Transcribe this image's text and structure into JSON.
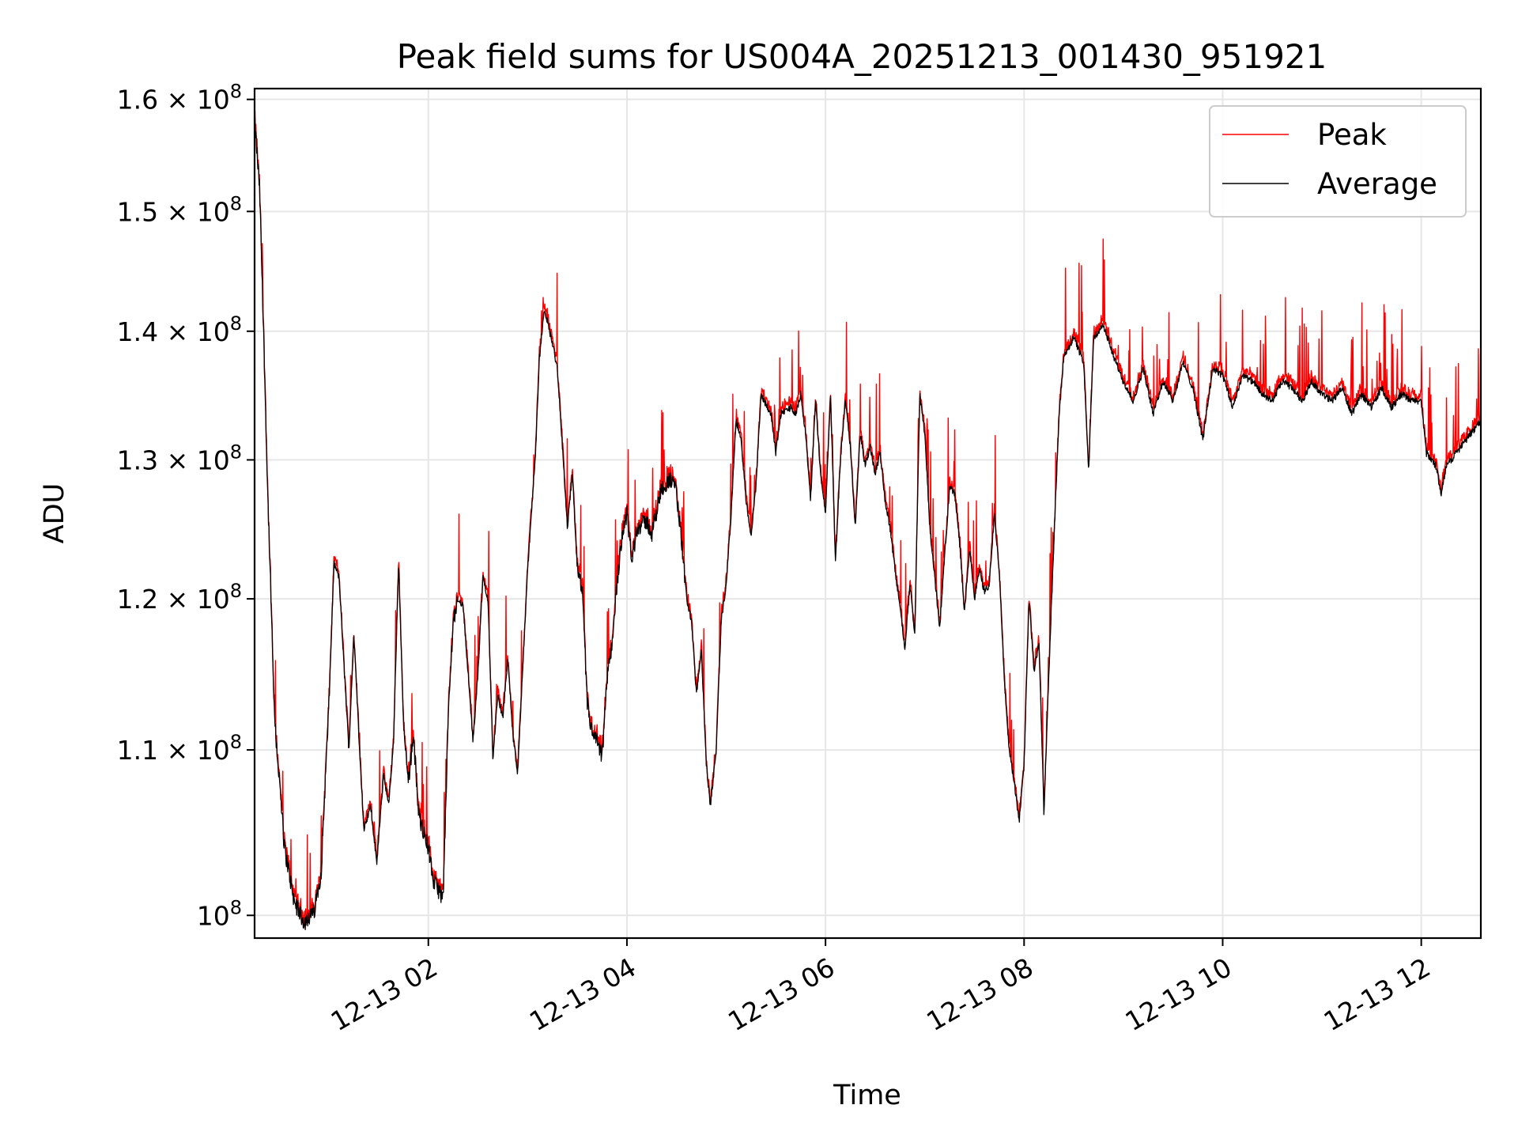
{
  "chart_data": {
    "type": "line",
    "title": "Peak field sums for US004A_20251213_001430_951921",
    "xlabel": "Time",
    "ylabel": "ADU",
    "yscale": "log",
    "grid": true,
    "legend_position": "top-right",
    "colors": {
      "peak": "#ff0000",
      "average": "#000000",
      "grid": "#e6e6e6"
    },
    "xlim_hours": [
      0.25,
      12.6
    ],
    "ylim": [
      98700000,
      161000000
    ],
    "x_ticks": [
      {
        "label": "12-13 02",
        "hour": 2
      },
      {
        "label": "12-13 04",
        "hour": 4
      },
      {
        "label": "12-13 06",
        "hour": 6
      },
      {
        "label": "12-13 08",
        "hour": 8
      },
      {
        "label": "12-13 10",
        "hour": 10
      },
      {
        "label": "12-13 12",
        "hour": 12
      }
    ],
    "y_ticks": [
      {
        "mant": "10",
        "exp": "8",
        "value": 100000000
      },
      {
        "mant": "1.1 × 10",
        "exp": "8",
        "value": 110000000
      },
      {
        "mant": "1.2 × 10",
        "exp": "8",
        "value": 120000000
      },
      {
        "mant": "1.3 × 10",
        "exp": "8",
        "value": 130000000
      },
      {
        "mant": "1.4 × 10",
        "exp": "8",
        "value": 140000000
      },
      {
        "mant": "1.5 × 10",
        "exp": "8",
        "value": 150000000
      },
      {
        "mant": "1.6 × 10",
        "exp": "8",
        "value": 160000000
      }
    ],
    "series": [
      {
        "name": "Peak",
        "color": "#ff0000"
      },
      {
        "name": "Average",
        "color": "#000000"
      }
    ],
    "average_keypoints_hours_adu": [
      [
        0.25,
        158.0
      ],
      [
        0.3,
        152.0
      ],
      [
        0.38,
        128.0
      ],
      [
        0.45,
        112.0
      ],
      [
        0.55,
        104.0
      ],
      [
        0.65,
        100.8
      ],
      [
        0.75,
        99.6
      ],
      [
        0.85,
        100.2
      ],
      [
        0.92,
        102.5
      ],
      [
        1.0,
        113.0
      ],
      [
        1.05,
        122.5
      ],
      [
        1.1,
        121.5
      ],
      [
        1.15,
        115.5
      ],
      [
        1.2,
        110.0
      ],
      [
        1.25,
        117.5
      ],
      [
        1.3,
        111.0
      ],
      [
        1.35,
        105.0
      ],
      [
        1.42,
        106.5
      ],
      [
        1.48,
        103.0
      ],
      [
        1.55,
        108.5
      ],
      [
        1.6,
        106.5
      ],
      [
        1.65,
        110.5
      ],
      [
        1.7,
        122.5
      ],
      [
        1.75,
        111.5
      ],
      [
        1.8,
        108.0
      ],
      [
        1.85,
        111.0
      ],
      [
        1.9,
        106.0
      ],
      [
        1.95,
        105.0
      ],
      [
        2.0,
        104.0
      ],
      [
        2.05,
        102.0
      ],
      [
        2.15,
        101.0
      ],
      [
        2.2,
        112.0
      ],
      [
        2.25,
        118.5
      ],
      [
        2.3,
        120.0
      ],
      [
        2.35,
        119.5
      ],
      [
        2.4,
        115.0
      ],
      [
        2.45,
        110.5
      ],
      [
        2.5,
        115.0
      ],
      [
        2.55,
        121.5
      ],
      [
        2.6,
        120.0
      ],
      [
        2.65,
        109.5
      ],
      [
        2.7,
        113.5
      ],
      [
        2.75,
        112.0
      ],
      [
        2.8,
        116.0
      ],
      [
        2.85,
        111.0
      ],
      [
        2.9,
        108.5
      ],
      [
        3.0,
        122.0
      ],
      [
        3.08,
        130.5
      ],
      [
        3.12,
        138.0
      ],
      [
        3.17,
        141.8
      ],
      [
        3.25,
        139.0
      ],
      [
        3.3,
        137.0
      ],
      [
        3.35,
        131.0
      ],
      [
        3.4,
        125.0
      ],
      [
        3.45,
        129.0
      ],
      [
        3.5,
        122.0
      ],
      [
        3.55,
        120.5
      ],
      [
        3.6,
        113.0
      ],
      [
        3.65,
        111.0
      ],
      [
        3.7,
        110.5
      ],
      [
        3.75,
        109.5
      ],
      [
        3.8,
        114.5
      ],
      [
        3.85,
        117.0
      ],
      [
        3.9,
        121.0
      ],
      [
        3.95,
        124.5
      ],
      [
        4.0,
        126.0
      ],
      [
        4.05,
        122.5
      ],
      [
        4.1,
        125.0
      ],
      [
        4.2,
        125.5
      ],
      [
        4.25,
        124.5
      ],
      [
        4.35,
        128.0
      ],
      [
        4.45,
        128.5
      ],
      [
        4.5,
        127.5
      ],
      [
        4.55,
        124.0
      ],
      [
        4.6,
        120.0
      ],
      [
        4.65,
        118.5
      ],
      [
        4.7,
        113.5
      ],
      [
        4.75,
        116.5
      ],
      [
        4.8,
        109.0
      ],
      [
        4.84,
        106.5
      ],
      [
        4.9,
        110.0
      ],
      [
        4.95,
        118.5
      ],
      [
        5.0,
        121.0
      ],
      [
        5.05,
        126.0
      ],
      [
        5.1,
        133.0
      ],
      [
        5.15,
        131.5
      ],
      [
        5.2,
        127.0
      ],
      [
        5.25,
        124.5
      ],
      [
        5.3,
        128.0
      ],
      [
        5.35,
        135.0
      ],
      [
        5.45,
        133.5
      ],
      [
        5.5,
        130.5
      ],
      [
        5.55,
        133.5
      ],
      [
        5.65,
        134.0
      ],
      [
        5.7,
        133.5
      ],
      [
        5.75,
        135.0
      ],
      [
        5.8,
        132.0
      ],
      [
        5.85,
        127.0
      ],
      [
        5.9,
        134.5
      ],
      [
        5.95,
        129.0
      ],
      [
        6.0,
        126.0
      ],
      [
        6.05,
        135.0
      ],
      [
        6.1,
        122.5
      ],
      [
        6.15,
        130.0
      ],
      [
        6.2,
        134.5
      ],
      [
        6.25,
        131.0
      ],
      [
        6.3,
        125.0
      ],
      [
        6.35,
        132.0
      ],
      [
        6.4,
        129.5
      ],
      [
        6.45,
        131.0
      ],
      [
        6.5,
        129.0
      ],
      [
        6.55,
        130.5
      ],
      [
        6.6,
        127.0
      ],
      [
        6.65,
        125.0
      ],
      [
        6.7,
        122.0
      ],
      [
        6.75,
        119.5
      ],
      [
        6.8,
        116.5
      ],
      [
        6.85,
        121.0
      ],
      [
        6.9,
        117.5
      ],
      [
        6.95,
        135.0
      ],
      [
        7.0,
        132.0
      ],
      [
        7.05,
        125.0
      ],
      [
        7.1,
        121.5
      ],
      [
        7.15,
        118.0
      ],
      [
        7.2,
        123.0
      ],
      [
        7.25,
        128.0
      ],
      [
        7.3,
        127.5
      ],
      [
        7.35,
        124.0
      ],
      [
        7.4,
        119.0
      ],
      [
        7.45,
        123.5
      ],
      [
        7.5,
        120.0
      ],
      [
        7.55,
        122.0
      ],
      [
        7.6,
        120.5
      ],
      [
        7.65,
        121.0
      ],
      [
        7.7,
        126.0
      ],
      [
        7.75,
        122.0
      ],
      [
        7.8,
        114.5
      ],
      [
        7.85,
        110.0
      ],
      [
        7.9,
        108.0
      ],
      [
        7.95,
        105.5
      ],
      [
        8.0,
        109.0
      ],
      [
        8.05,
        120.0
      ],
      [
        8.1,
        115.0
      ],
      [
        8.15,
        117.0
      ],
      [
        8.2,
        106.0
      ],
      [
        8.3,
        124.0
      ],
      [
        8.35,
        133.0
      ],
      [
        8.4,
        138.0
      ],
      [
        8.5,
        139.5
      ],
      [
        8.6,
        137.5
      ],
      [
        8.65,
        129.0
      ],
      [
        8.7,
        139.5
      ],
      [
        8.8,
        140.5
      ],
      [
        8.9,
        138.0
      ],
      [
        9.0,
        136.0
      ],
      [
        9.1,
        134.5
      ],
      [
        9.2,
        137.0
      ],
      [
        9.3,
        133.5
      ],
      [
        9.4,
        136.0
      ],
      [
        9.5,
        134.5
      ],
      [
        9.6,
        137.5
      ],
      [
        9.7,
        135.5
      ],
      [
        9.8,
        131.5
      ],
      [
        9.9,
        137.0
      ],
      [
        10.0,
        136.5
      ],
      [
        10.1,
        134.0
      ],
      [
        10.2,
        136.5
      ],
      [
        10.3,
        136.0
      ],
      [
        10.4,
        135.0
      ],
      [
        10.5,
        134.5
      ],
      [
        10.6,
        136.0
      ],
      [
        10.7,
        135.5
      ],
      [
        10.8,
        134.5
      ],
      [
        10.9,
        136.0
      ],
      [
        11.0,
        135.0
      ],
      [
        11.1,
        134.5
      ],
      [
        11.2,
        135.5
      ],
      [
        11.3,
        133.5
      ],
      [
        11.4,
        135.0
      ],
      [
        11.5,
        134.0
      ],
      [
        11.6,
        135.5
      ],
      [
        11.7,
        134.0
      ],
      [
        11.8,
        135.0
      ],
      [
        11.9,
        134.5
      ],
      [
        12.0,
        134.5
      ],
      [
        12.05,
        130.5
      ],
      [
        12.15,
        129.5
      ],
      [
        12.2,
        127.5
      ],
      [
        12.25,
        129.5
      ],
      [
        12.35,
        130.5
      ],
      [
        12.45,
        131.5
      ],
      [
        12.55,
        132.5
      ],
      [
        12.6,
        133.0
      ]
    ]
  }
}
